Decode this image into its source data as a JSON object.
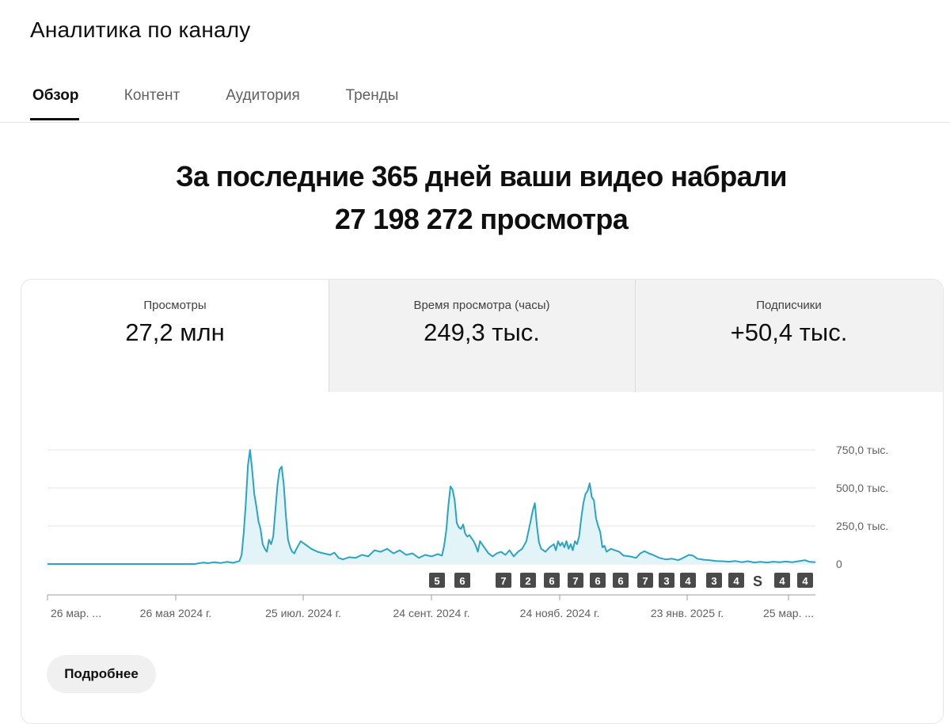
{
  "header": {
    "title": "Аналитика по каналу"
  },
  "tabs": [
    {
      "label": "Обзор",
      "active": true
    },
    {
      "label": "Контент",
      "active": false
    },
    {
      "label": "Аудитория",
      "active": false
    },
    {
      "label": "Тренды",
      "active": false
    }
  ],
  "summary": {
    "line1": "За последние 365 дней ваши видео набрали",
    "line2": "27 198 272 просмотра"
  },
  "metrics": [
    {
      "label": "Просмотры",
      "value": "27,2 млн",
      "selected": true
    },
    {
      "label": "Время просмотра (часы)",
      "value": "249,3 тыс.",
      "selected": false
    },
    {
      "label": "Подписчики",
      "value": "+50,4 тыс.",
      "selected": false
    }
  ],
  "chart_data": {
    "type": "area",
    "y_axis_labels": [
      "750,0 тыс.",
      "500,0 тыс.",
      "250,0 тыс.",
      "0"
    ],
    "y_ticks": [
      750000,
      500000,
      250000,
      0
    ],
    "ylim": [
      0,
      820000
    ],
    "x_labels": [
      "26 мар. ...",
      "26 мая 2024 г.",
      "25 июл. 2024 г.",
      "24 сент. 2024 г.",
      "24 нояб. 2024 г.",
      "23 янв. 2025 г.",
      "25 мар. ..."
    ],
    "grid": true,
    "color": "#2ba3c4",
    "fill": "#e3f4f9",
    "days": 365,
    "points": [
      [
        0,
        0
      ],
      [
        70,
        0
      ],
      [
        71,
        3000
      ],
      [
        74,
        10000
      ],
      [
        76,
        5000
      ],
      [
        79,
        12000
      ],
      [
        82,
        6000
      ],
      [
        85,
        14000
      ],
      [
        88,
        8000
      ],
      [
        91,
        20000
      ],
      [
        92,
        60000
      ],
      [
        93,
        200000
      ],
      [
        94,
        400000
      ],
      [
        95,
        650000
      ],
      [
        96,
        750000
      ],
      [
        97,
        620000
      ],
      [
        98,
        460000
      ],
      [
        99,
        380000
      ],
      [
        100,
        280000
      ],
      [
        101,
        230000
      ],
      [
        102,
        130000
      ],
      [
        103,
        100000
      ],
      [
        104,
        80000
      ],
      [
        105,
        160000
      ],
      [
        106,
        130000
      ],
      [
        107,
        180000
      ],
      [
        108,
        350000
      ],
      [
        109,
        520000
      ],
      [
        110,
        620000
      ],
      [
        111,
        640000
      ],
      [
        112,
        520000
      ],
      [
        113,
        320000
      ],
      [
        114,
        160000
      ],
      [
        115,
        110000
      ],
      [
        116,
        80000
      ],
      [
        117,
        70000
      ],
      [
        118,
        100000
      ],
      [
        120,
        150000
      ],
      [
        122,
        130000
      ],
      [
        125,
        100000
      ],
      [
        128,
        80000
      ],
      [
        131,
        70000
      ],
      [
        134,
        60000
      ],
      [
        136,
        75000
      ],
      [
        138,
        40000
      ],
      [
        140,
        30000
      ],
      [
        143,
        45000
      ],
      [
        146,
        40000
      ],
      [
        149,
        60000
      ],
      [
        152,
        50000
      ],
      [
        155,
        90000
      ],
      [
        158,
        80000
      ],
      [
        161,
        100000
      ],
      [
        164,
        70000
      ],
      [
        167,
        90000
      ],
      [
        170,
        60000
      ],
      [
        173,
        70000
      ],
      [
        176,
        40000
      ],
      [
        179,
        60000
      ],
      [
        182,
        50000
      ],
      [
        185,
        65000
      ],
      [
        187,
        55000
      ],
      [
        188,
        120000
      ],
      [
        189,
        220000
      ],
      [
        190,
        380000
      ],
      [
        191,
        510000
      ],
      [
        192,
        490000
      ],
      [
        193,
        420000
      ],
      [
        194,
        270000
      ],
      [
        195,
        240000
      ],
      [
        196,
        230000
      ],
      [
        197,
        260000
      ],
      [
        198,
        200000
      ],
      [
        199,
        180000
      ],
      [
        200,
        190000
      ],
      [
        201,
        170000
      ],
      [
        202,
        150000
      ],
      [
        203,
        120000
      ],
      [
        204,
        80000
      ],
      [
        205,
        150000
      ],
      [
        207,
        110000
      ],
      [
        209,
        70000
      ],
      [
        211,
        50000
      ],
      [
        213,
        70000
      ],
      [
        215,
        80000
      ],
      [
        217,
        60000
      ],
      [
        219,
        90000
      ],
      [
        221,
        50000
      ],
      [
        223,
        80000
      ],
      [
        225,
        100000
      ],
      [
        227,
        150000
      ],
      [
        229,
        280000
      ],
      [
        230,
        350000
      ],
      [
        231,
        400000
      ],
      [
        232,
        250000
      ],
      [
        233,
        140000
      ],
      [
        234,
        100000
      ],
      [
        236,
        80000
      ],
      [
        238,
        110000
      ],
      [
        240,
        130000
      ],
      [
        241,
        90000
      ],
      [
        242,
        150000
      ],
      [
        243,
        120000
      ],
      [
        244,
        140000
      ],
      [
        245,
        110000
      ],
      [
        246,
        150000
      ],
      [
        247,
        100000
      ],
      [
        248,
        130000
      ],
      [
        249,
        90000
      ],
      [
        250,
        150000
      ],
      [
        251,
        130000
      ],
      [
        252,
        180000
      ],
      [
        253,
        300000
      ],
      [
        254,
        400000
      ],
      [
        255,
        460000
      ],
      [
        256,
        480000
      ],
      [
        257,
        530000
      ],
      [
        258,
        440000
      ],
      [
        259,
        420000
      ],
      [
        260,
        300000
      ],
      [
        261,
        250000
      ],
      [
        262,
        210000
      ],
      [
        263,
        110000
      ],
      [
        264,
        120000
      ],
      [
        265,
        80000
      ],
      [
        267,
        100000
      ],
      [
        269,
        90000
      ],
      [
        271,
        80000
      ],
      [
        273,
        55000
      ],
      [
        276,
        50000
      ],
      [
        279,
        40000
      ],
      [
        281,
        70000
      ],
      [
        283,
        85000
      ],
      [
        285,
        70000
      ],
      [
        287,
        60000
      ],
      [
        290,
        40000
      ],
      [
        293,
        30000
      ],
      [
        296,
        35000
      ],
      [
        299,
        25000
      ],
      [
        302,
        45000
      ],
      [
        304,
        60000
      ],
      [
        306,
        55000
      ],
      [
        308,
        35000
      ],
      [
        311,
        28000
      ],
      [
        314,
        25000
      ],
      [
        317,
        20000
      ],
      [
        320,
        18000
      ],
      [
        323,
        15000
      ],
      [
        326,
        20000
      ],
      [
        329,
        12000
      ],
      [
        332,
        18000
      ],
      [
        335,
        10000
      ],
      [
        338,
        14000
      ],
      [
        341,
        10000
      ],
      [
        344,
        15000
      ],
      [
        347,
        12000
      ],
      [
        350,
        16000
      ],
      [
        353,
        12000
      ],
      [
        356,
        18000
      ],
      [
        359,
        25000
      ],
      [
        361,
        15000
      ],
      [
        364,
        12000
      ]
    ],
    "markers": [
      "5",
      "6",
      "7",
      "2",
      "6",
      "7",
      "6",
      "6",
      "7",
      "3",
      "4",
      "3",
      "4",
      "S",
      "4",
      "4"
    ]
  },
  "footer": {
    "more_label": "Подробнее"
  }
}
